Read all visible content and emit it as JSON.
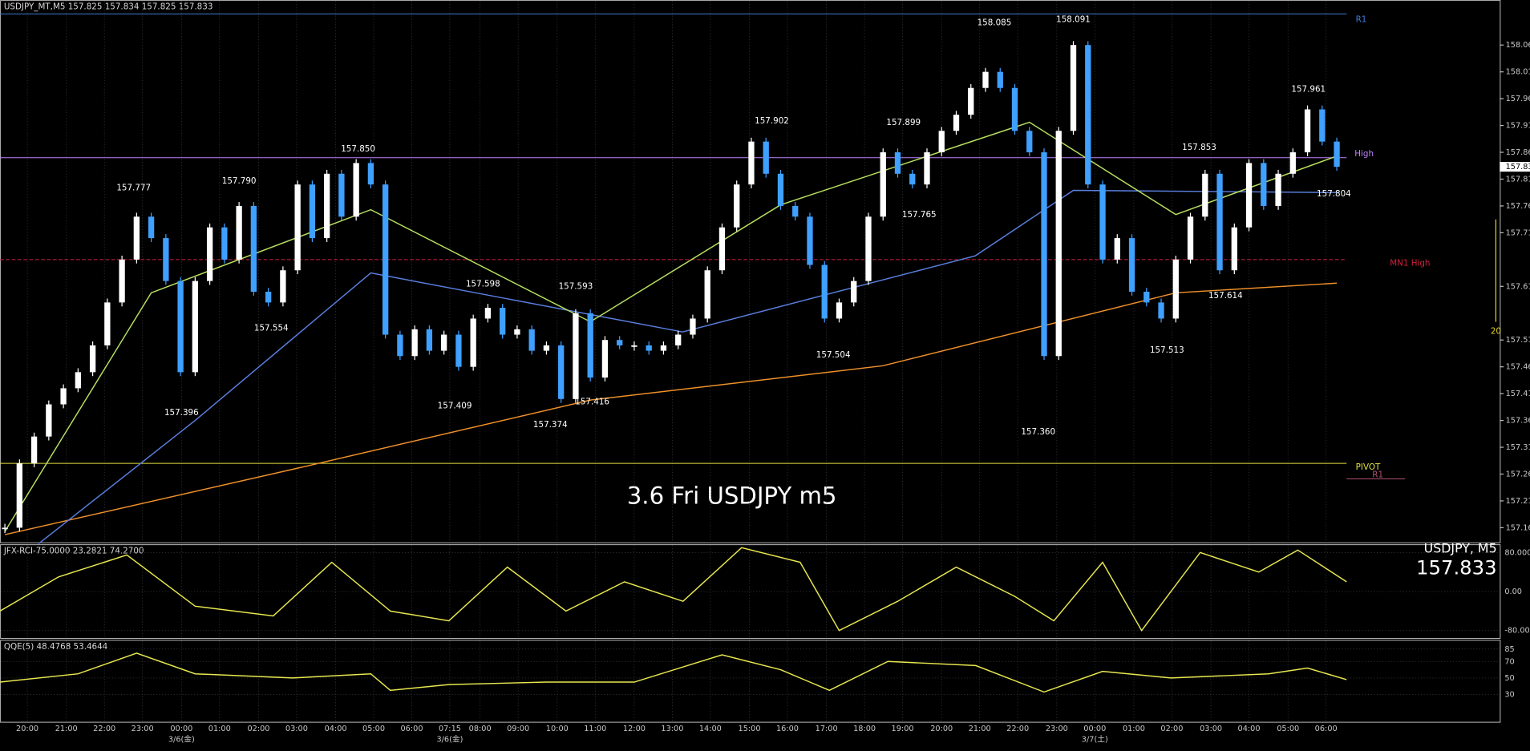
{
  "header": "USDJPY_MT,M5  157.825 157.834 157.825 157.833",
  "watermark": "3.6 Fri USDJPY m5",
  "symbol_box": {
    "name": "USDJPY, M5",
    "price": "157.833"
  },
  "side_label": "20",
  "main": {
    "ylim": [
      157.131,
      158.144
    ],
    "yticks": [
      {
        "value": 158.06,
        "label": "158.060"
      },
      {
        "value": 158.01,
        "label": "158.010"
      },
      {
        "value": 157.96,
        "label": "157.960"
      },
      {
        "value": 157.91,
        "label": "157.910"
      },
      {
        "value": 157.86,
        "label": "157.860"
      },
      {
        "value": 157.81,
        "label": "157.810"
      },
      {
        "value": 157.76,
        "label": "157.760"
      },
      {
        "value": 157.71,
        "label": "157.710"
      },
      {
        "value": 157.61,
        "label": "157.610"
      },
      {
        "value": 157.51,
        "label": "157.510"
      },
      {
        "value": 157.46,
        "label": "157.460"
      },
      {
        "value": 157.41,
        "label": "157.410"
      },
      {
        "value": 157.36,
        "label": "157.360"
      },
      {
        "value": 157.31,
        "label": "157.310"
      },
      {
        "value": 157.26,
        "label": "157.260"
      },
      {
        "value": 157.21,
        "label": "157.210"
      },
      {
        "value": 157.16,
        "label": "157.160"
      }
    ],
    "up_color": "#ffffff",
    "down_color": "#3fa0ff",
    "candles": [
      157.16,
      157.28,
      157.33,
      157.39,
      157.42,
      157.45,
      157.5,
      157.58,
      157.66,
      157.74,
      157.7,
      157.62,
      157.45,
      157.62,
      157.72,
      157.66,
      157.76,
      157.6,
      157.58,
      157.64,
      157.8,
      157.7,
      157.82,
      157.74,
      157.84,
      157.8,
      157.52,
      157.48,
      157.53,
      157.49,
      157.52,
      157.46,
      157.55,
      157.57,
      157.52,
      157.53,
      157.49,
      157.5,
      157.4,
      157.56,
      157.44,
      157.51,
      157.5,
      157.5,
      157.49,
      157.5,
      157.52,
      157.55,
      157.64,
      157.72,
      157.8,
      157.88,
      157.82,
      157.76,
      157.74,
      157.65,
      157.55,
      157.58,
      157.62,
      157.74,
      157.86,
      157.82,
      157.8,
      157.86,
      157.9,
      157.93,
      157.98,
      158.01,
      157.98,
      157.9,
      157.86,
      157.48,
      157.9,
      158.06,
      157.8,
      157.66,
      157.7,
      157.6,
      157.58,
      157.55,
      157.66,
      157.74,
      157.82,
      157.64,
      157.72,
      157.84,
      157.76,
      157.82,
      157.86,
      157.94,
      157.88,
      157.833
    ],
    "averages": [
      {
        "color": "#f0902a",
        "x": [
          0,
          20,
          40,
          60,
          80,
          91
        ],
        "values": [
          157.147,
          157.271,
          157.398,
          157.462,
          157.598,
          157.616
        ]
      },
      {
        "color": "#5a7fe0",
        "x": [
          2.3,
          13,
          25,
          46.3,
          66.3,
          73,
          91
        ],
        "values": [
          157.13,
          157.36,
          157.635,
          157.525,
          157.667,
          157.789,
          157.785
        ]
      },
      {
        "color": "#b8e060",
        "x": [
          0,
          10,
          25,
          40,
          53,
          70,
          80,
          91
        ],
        "values": [
          157.153,
          157.598,
          157.753,
          157.544,
          157.762,
          157.916,
          157.744,
          157.853
        ]
      }
    ],
    "levels": [
      {
        "name": "R1",
        "value": 158.118,
        "color": "#3b7dd8"
      },
      {
        "name": "High",
        "value": 157.85,
        "color": "#c080ff"
      },
      {
        "name": "MN1 High",
        "value": 157.66,
        "color": "#d02040"
      },
      {
        "name": "PIVOT",
        "value": 157.28,
        "color": "#e0e040"
      },
      {
        "name": "R1",
        "value": 157.251,
        "color": "#b05070"
      }
    ],
    "annotations": [
      {
        "label": "157.777"
      },
      {
        "label": "157.790"
      },
      {
        "label": "157.850"
      },
      {
        "label": "157.554"
      },
      {
        "label": "157.396"
      },
      {
        "label": "157.598"
      },
      {
        "label": "157.593"
      },
      {
        "label": "157.409"
      },
      {
        "label": "157.416"
      },
      {
        "label": "157.374"
      },
      {
        "label": "157.902"
      },
      {
        "label": "157.899"
      },
      {
        "label": "157.765"
      },
      {
        "label": "157.504"
      },
      {
        "label": "158.085"
      },
      {
        "label": "158.091"
      },
      {
        "label": "157.360"
      },
      {
        "label": "157.853"
      },
      {
        "label": "157.614"
      },
      {
        "label": "157.513"
      },
      {
        "label": "157.961"
      },
      {
        "label": "157.804"
      }
    ]
  },
  "rci": {
    "title": "JFX-RCI-75.0000 23.2821 74.2700",
    "ylim": [
      -95,
      95
    ],
    "yticks": [
      {
        "value": 80,
        "label": "80.0000"
      },
      {
        "value": 0,
        "label": "0.00"
      },
      {
        "value": -80,
        "label": "-80.0000"
      }
    ],
    "color": "#e8e850",
    "x": [
      0,
      60,
      130,
      200,
      280,
      340,
      400,
      460,
      520,
      580,
      640,
      700,
      760,
      820,
      860,
      920,
      980,
      1040,
      1080,
      1130,
      1170,
      1230,
      1290,
      1330,
      1380
    ],
    "values": [
      -40,
      30,
      75,
      -30,
      -50,
      60,
      -40,
      -60,
      50,
      -40,
      20,
      -20,
      90,
      60,
      -80,
      -20,
      50,
      -10,
      -60,
      60,
      -80,
      80,
      40,
      85,
      20
    ]
  },
  "qqe": {
    "title": "QQE(5) 48.4768 53.4644",
    "ylim": [
      -3,
      95
    ],
    "yticks": [
      85,
      70,
      50,
      30
    ],
    "color": "#e8e850",
    "x": [
      0,
      80,
      140,
      200,
      300,
      380,
      400,
      460,
      560,
      650,
      740,
      800,
      850,
      910,
      1000,
      1070,
      1130,
      1200,
      1300,
      1340,
      1380
    ],
    "values": [
      45,
      55,
      80,
      55,
      50,
      55,
      35,
      42,
      45,
      45,
      78,
      60,
      35,
      70,
      65,
      33,
      58,
      50,
      55,
      62,
      48
    ]
  },
  "time_axis": {
    "labels": [
      "20:00",
      "21:00",
      "22:00",
      "23:00",
      "00:00",
      "01:00",
      "02:00",
      "03:00",
      "04:00",
      "05:00",
      "06:00",
      "07:15",
      "08:00",
      "09:00",
      "10:00",
      "11:00",
      "12:00",
      "13:00",
      "14:00",
      "15:00",
      "16:00",
      "17:00",
      "18:00",
      "19:00",
      "20:00",
      "21:00",
      "22:00",
      "23:00",
      "00:00",
      "01:00",
      "02:00",
      "03:00",
      "04:00",
      "05:00",
      "06:00"
    ],
    "dates": [
      "3/6(金)",
      "3/6(金)",
      "3/7(土)"
    ]
  }
}
